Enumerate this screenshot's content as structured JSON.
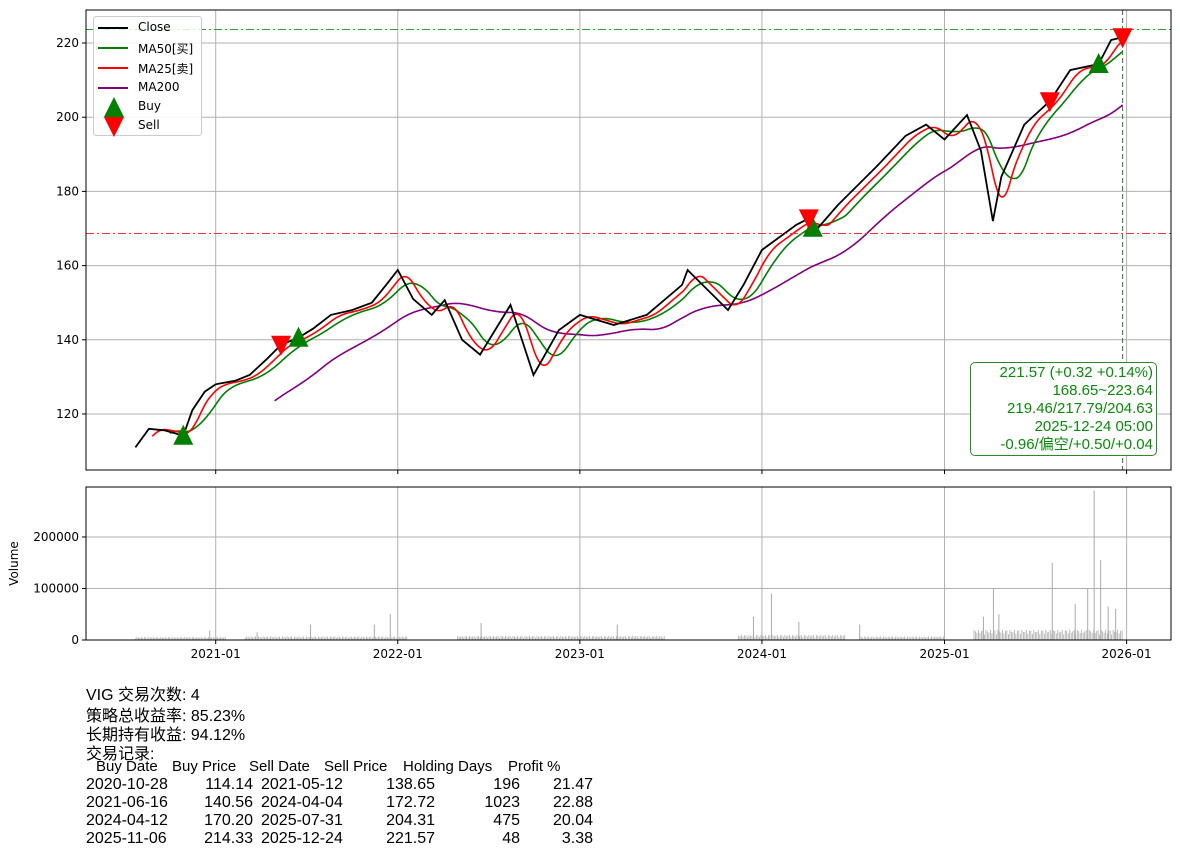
{
  "chart_data": [
    {
      "type": "line",
      "ylim": [
        104.9,
        228.9
      ],
      "xlim": [
        "2020-04-16",
        "2026-03-31"
      ],
      "grid": true,
      "yticks": [
        120,
        140,
        160,
        180,
        200,
        220
      ],
      "legend_position": "top-left",
      "legend": [
        {
          "name": "Close",
          "color": "#000000",
          "kind": "line"
        },
        {
          "name": "MA50[买]",
          "color": "#008000",
          "kind": "line"
        },
        {
          "name": "MA25[卖]",
          "color": "#ff0000",
          "kind": "line"
        },
        {
          "name": "MA200",
          "color": "#800080",
          "kind": "line"
        },
        {
          "name": "Buy",
          "color": "#008000",
          "kind": "triangle-up"
        },
        {
          "name": "Sell",
          "color": "#ff0000",
          "kind": "triangle-down"
        }
      ],
      "close": [
        [
          "2020-07-24",
          111
        ],
        [
          "2020-08-20",
          116
        ],
        [
          "2020-09-20",
          115.6
        ],
        [
          "2020-10-28",
          114.14
        ],
        [
          "2020-11-15",
          121
        ],
        [
          "2020-12-10",
          126
        ],
        [
          "2021-01-01",
          128
        ],
        [
          "2021-02-10",
          129
        ],
        [
          "2021-03-10",
          130.5
        ],
        [
          "2021-04-15",
          135
        ],
        [
          "2021-05-12",
          138.65
        ],
        [
          "2021-06-16",
          140.56
        ],
        [
          "2021-07-15",
          143
        ],
        [
          "2021-08-20",
          146.7
        ],
        [
          "2021-10-01",
          148
        ],
        [
          "2021-11-10",
          150
        ],
        [
          "2021-12-10",
          155
        ],
        [
          "2022-01-01",
          158.8
        ],
        [
          "2022-02-01",
          151
        ],
        [
          "2022-03-10",
          146.7
        ],
        [
          "2022-04-05",
          150.7
        ],
        [
          "2022-05-10",
          140
        ],
        [
          "2022-06-15",
          136
        ],
        [
          "2022-08-15",
          149.4
        ],
        [
          "2022-09-30",
          130.5
        ],
        [
          "2022-11-20",
          142.6
        ],
        [
          "2023-01-01",
          146.7
        ],
        [
          "2023-03-10",
          144
        ],
        [
          "2023-05-15",
          146.7
        ],
        [
          "2023-07-25",
          154.8
        ],
        [
          "2023-08-05",
          158.8
        ],
        [
          "2023-10-25",
          148
        ],
        [
          "2023-11-25",
          154.8
        ],
        [
          "2024-01-01",
          164.2
        ],
        [
          "2024-03-10",
          171
        ],
        [
          "2024-04-04",
          172.72
        ],
        [
          "2024-04-15",
          169
        ],
        [
          "2024-06-01",
          176.3
        ],
        [
          "2024-08-20",
          187
        ],
        [
          "2024-10-15",
          195
        ],
        [
          "2024-11-25",
          198
        ],
        [
          "2025-01-01",
          194
        ],
        [
          "2025-02-15",
          200.6
        ],
        [
          "2025-03-15",
          191
        ],
        [
          "2025-04-08",
          172
        ],
        [
          "2025-04-25",
          184
        ],
        [
          "2025-06-10",
          198
        ],
        [
          "2025-07-31",
          204.31
        ],
        [
          "2025-09-10",
          212.7
        ],
        [
          "2025-11-06",
          214.33
        ],
        [
          "2025-12-01",
          220.8
        ],
        [
          "2025-12-24",
          221.57
        ]
      ],
      "hlines": [
        {
          "value": 223.64,
          "color": "#2ca02c"
        },
        {
          "value": 168.65,
          "color": "#ff3333"
        }
      ],
      "vline": "2025-12-24",
      "buys": [
        [
          "2020-10-28",
          114.14
        ],
        [
          "2021-06-16",
          140.56
        ],
        [
          "2024-04-12",
          170.2
        ],
        [
          "2025-11-06",
          214.33
        ]
      ],
      "sells": [
        [
          "2021-05-12",
          138.65
        ],
        [
          "2024-04-04",
          172.72
        ],
        [
          "2025-07-31",
          204.31
        ],
        [
          "2025-12-24",
          221.57
        ]
      ]
    },
    {
      "type": "bar",
      "ylabel": "Volume",
      "ylim": [
        0,
        297000
      ],
      "yticks": [
        0,
        100000,
        200000
      ],
      "xticks": [
        "2021-01",
        "2022-01",
        "2023-01",
        "2024-01",
        "2025-01",
        "2026-01"
      ],
      "color": "#aaaaaa",
      "periods": [
        [
          "2020-07-24",
          "2021-01-20",
          6000
        ],
        [
          "2021-03-01",
          "2022-01-20",
          7000
        ],
        [
          "2022-05-01",
          "2023-06-20",
          8000
        ],
        [
          "2023-11-15",
          "2024-06-15",
          10000
        ],
        [
          "2024-07-15",
          "2024-12-31",
          7000
        ],
        [
          "2025-03-01",
          "2025-12-24",
          20000
        ]
      ],
      "spikes": [
        [
          "2020-12-20",
          18000
        ],
        [
          "2021-03-25",
          15000
        ],
        [
          "2021-07-10",
          30000
        ],
        [
          "2021-11-15",
          30000
        ],
        [
          "2021-12-17",
          50000
        ],
        [
          "2022-06-17",
          33000
        ],
        [
          "2023-03-17",
          30000
        ],
        [
          "2023-12-15",
          45000
        ],
        [
          "2024-01-20",
          90000
        ],
        [
          "2024-03-15",
          35000
        ],
        [
          "2024-07-15",
          30000
        ],
        [
          "2025-03-20",
          45000
        ],
        [
          "2025-04-09",
          100000
        ],
        [
          "2025-04-20",
          50000
        ],
        [
          "2025-08-05",
          150000
        ],
        [
          "2025-09-20",
          70000
        ],
        [
          "2025-10-15",
          100000
        ],
        [
          "2025-10-28",
          290000
        ],
        [
          "2025-11-10",
          155000
        ],
        [
          "2025-11-25",
          65000
        ],
        [
          "2025-12-10",
          60000
        ]
      ]
    }
  ],
  "info_box": {
    "line1": "221.57 (+0.32 +0.14%)",
    "line2": "168.65~223.64",
    "line3": "219.46/217.79/204.63",
    "line4": "2025-12-24 05:00",
    "line5": "-0.96/偏空/+0.50/+0.04"
  },
  "summary": {
    "trades": "VIG 交易次数: 4",
    "strategy_return": "策略总收益率: 85.23%",
    "hold_return": "长期持有收益: 94.12%",
    "records_title": "交易记录:"
  },
  "table": {
    "headers": [
      "Buy Date",
      "Buy Price",
      "Sell Date",
      "Sell Price",
      "Holding Days",
      "Profit %"
    ],
    "rows": [
      [
        "2020-10-28",
        "114.14",
        "2021-05-12",
        "138.65",
        "196",
        "21.47"
      ],
      [
        "2021-06-16",
        "140.56",
        "2024-04-04",
        "172.72",
        "1023",
        "22.88"
      ],
      [
        "2024-04-12",
        "170.20",
        "2025-07-31",
        "204.31",
        "475",
        "20.04"
      ],
      [
        "2025-11-06",
        "214.33",
        "2025-12-24",
        "221.57",
        "48",
        "3.38"
      ]
    ]
  }
}
